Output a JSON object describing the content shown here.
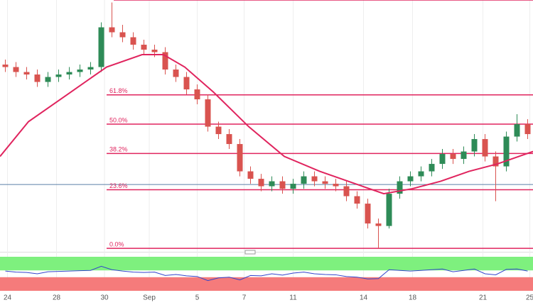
{
  "chart_data": {
    "type": "candlestick",
    "xlim": [
      -0.5,
      49.5
    ],
    "ylim": [
      -1.4,
      100
    ],
    "xticks": [
      {
        "value": 0.2,
        "label": "24"
      },
      {
        "value": 4.8,
        "label": "28"
      },
      {
        "value": 9.3,
        "label": "30"
      },
      {
        "value": 13.5,
        "label": "Sep"
      },
      {
        "value": 18,
        "label": "5"
      },
      {
        "value": 22.4,
        "label": "7"
      },
      {
        "value": 27,
        "label": "11"
      },
      {
        "value": 33.6,
        "label": "14"
      },
      {
        "value": 38.2,
        "label": "18"
      },
      {
        "value": 44.8,
        "label": "21"
      },
      {
        "value": 49.2,
        "label": "25"
      }
    ],
    "open": [
      74,
      73,
      71,
      70,
      67,
      69,
      70,
      71,
      72,
      73,
      89,
      87,
      85,
      82,
      80,
      79,
      72,
      69,
      64,
      60,
      49,
      46,
      42,
      31,
      28,
      25,
      27,
      24,
      26,
      29,
      27,
      26,
      25,
      21,
      18,
      10,
      9,
      22,
      27,
      29,
      31,
      34,
      38,
      36,
      39,
      44,
      37,
      33,
      45,
      50
    ],
    "high": [
      76,
      75,
      73,
      72,
      71,
      72,
      73,
      74,
      75,
      91,
      99,
      90,
      87,
      84,
      82,
      81,
      74,
      71,
      66,
      62,
      51,
      48,
      44,
      33,
      30,
      29,
      29,
      28,
      31,
      31,
      29,
      28,
      27,
      23,
      20,
      12,
      24,
      29,
      31,
      33,
      36,
      40,
      40,
      41,
      46,
      46,
      39,
      47,
      54,
      52
    ],
    "low": [
      71,
      69,
      68,
      65,
      65,
      67,
      68,
      69,
      70,
      71,
      85,
      83,
      80,
      78,
      77,
      70,
      67,
      62,
      58,
      47,
      44,
      40,
      29,
      26,
      23,
      23,
      22,
      22,
      24,
      25,
      24,
      23,
      19,
      16,
      8,
      0,
      8,
      20,
      25,
      27,
      29,
      32,
      34,
      34,
      37,
      35,
      19,
      31,
      43,
      44
    ],
    "close": [
      73,
      71,
      70,
      67,
      69,
      70,
      71,
      72,
      73,
      89,
      87,
      85,
      82,
      80,
      79,
      72,
      69,
      64,
      60,
      49,
      46,
      42,
      31,
      28,
      25,
      27,
      24,
      26,
      29,
      27,
      26,
      25,
      21,
      18,
      10,
      9,
      22,
      27,
      29,
      31,
      34,
      38,
      36,
      39,
      44,
      37,
      33,
      45,
      50,
      46
    ],
    "up_color": "#2e8b57",
    "down_color": "#d9534f",
    "moving_average": {
      "color": "#e0245e",
      "x": [
        -0.5,
        2.17,
        6.17,
        9.5,
        12.83,
        14.83,
        16.83,
        19.5,
        22.83,
        26.17,
        29.5,
        32.83,
        35.5,
        38.17,
        40.83,
        43.5,
        46.17,
        49.5
      ],
      "values": [
        37,
        51,
        63,
        73,
        78,
        78,
        73,
        63,
        49,
        37,
        31,
        26,
        22,
        24,
        27,
        31,
        34,
        39
      ]
    },
    "fib_levels": [
      {
        "value": 0,
        "label": "0.0%"
      },
      {
        "value": 23.6,
        "label": "23.6%"
      },
      {
        "value": 38.2,
        "label": "38.2%"
      },
      {
        "value": 50,
        "label": "50.0%"
      },
      {
        "value": 61.8,
        "label": "61.8%"
      },
      {
        "value": 100,
        "label": null
      }
    ],
    "fib_color": "#e0245e",
    "horizontal_line": {
      "value": 25.7,
      "color": "#5b7fa6"
    },
    "rsi": {
      "ylim": [
        0,
        100
      ],
      "upper": 60,
      "lower": 40,
      "color": "#3344cc",
      "values": [
        58,
        55,
        54,
        50,
        56,
        57,
        58,
        59,
        60,
        72,
        62,
        58,
        55,
        54,
        55,
        45,
        48,
        44,
        42,
        30,
        38,
        40,
        32,
        45,
        44,
        50,
        46,
        52,
        55,
        50,
        48,
        47,
        42,
        40,
        35,
        36,
        62,
        60,
        58,
        60,
        62,
        64,
        56,
        60,
        64,
        50,
        47,
        63,
        64,
        58
      ]
    }
  }
}
